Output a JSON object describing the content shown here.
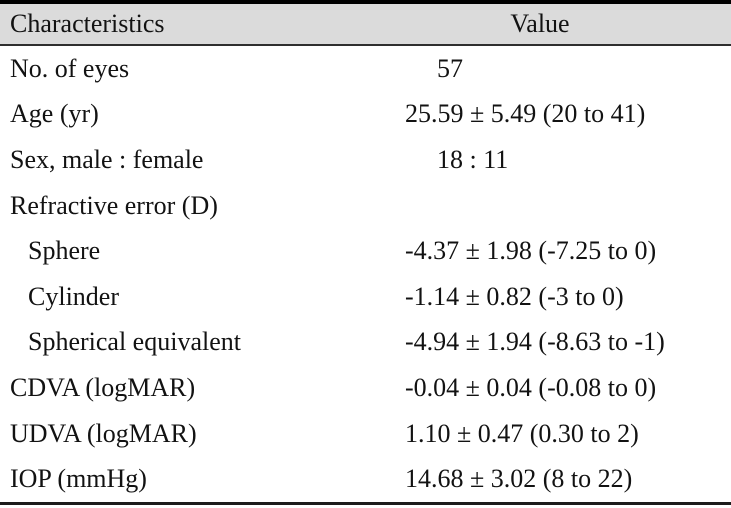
{
  "table": {
    "columns": {
      "characteristics": "Characteristics",
      "value": "Value"
    },
    "rows": [
      {
        "label": "No. of eyes",
        "value": "57",
        "indent": false
      },
      {
        "label": "Age (yr)",
        "value": "25.59 ± 5.49 (20 to 41)",
        "indent": false
      },
      {
        "label": "Sex, male : female",
        "value": "18 : 11",
        "indent": false
      },
      {
        "label": "Refractive error (D)",
        "value": "",
        "indent": false
      },
      {
        "label": "Sphere",
        "value": "-4.37 ± 1.98 (-7.25 to 0)",
        "indent": true
      },
      {
        "label": "Cylinder",
        "value": "-1.14 ± 0.82 (-3 to 0)",
        "indent": true
      },
      {
        "label": "Spherical equivalent",
        "value": "-4.94 ± 1.94 (-8.63 to -1)",
        "indent": true
      },
      {
        "label": "CDVA (logMAR)",
        "value": "-0.04 ± 0.04 (-0.08 to 0)",
        "indent": false
      },
      {
        "label": "UDVA (logMAR)",
        "value": "1.10 ± 0.47 (0.30 to 2)",
        "indent": false
      },
      {
        "label": "IOP (mmHg)",
        "value": "14.68 ± 3.02 (8 to 22)",
        "indent": false
      }
    ],
    "colors": {
      "header_bg": "#dbdbdb",
      "top_border": "#000000",
      "rule": "#2e2e2e",
      "text": "#121212"
    }
  }
}
